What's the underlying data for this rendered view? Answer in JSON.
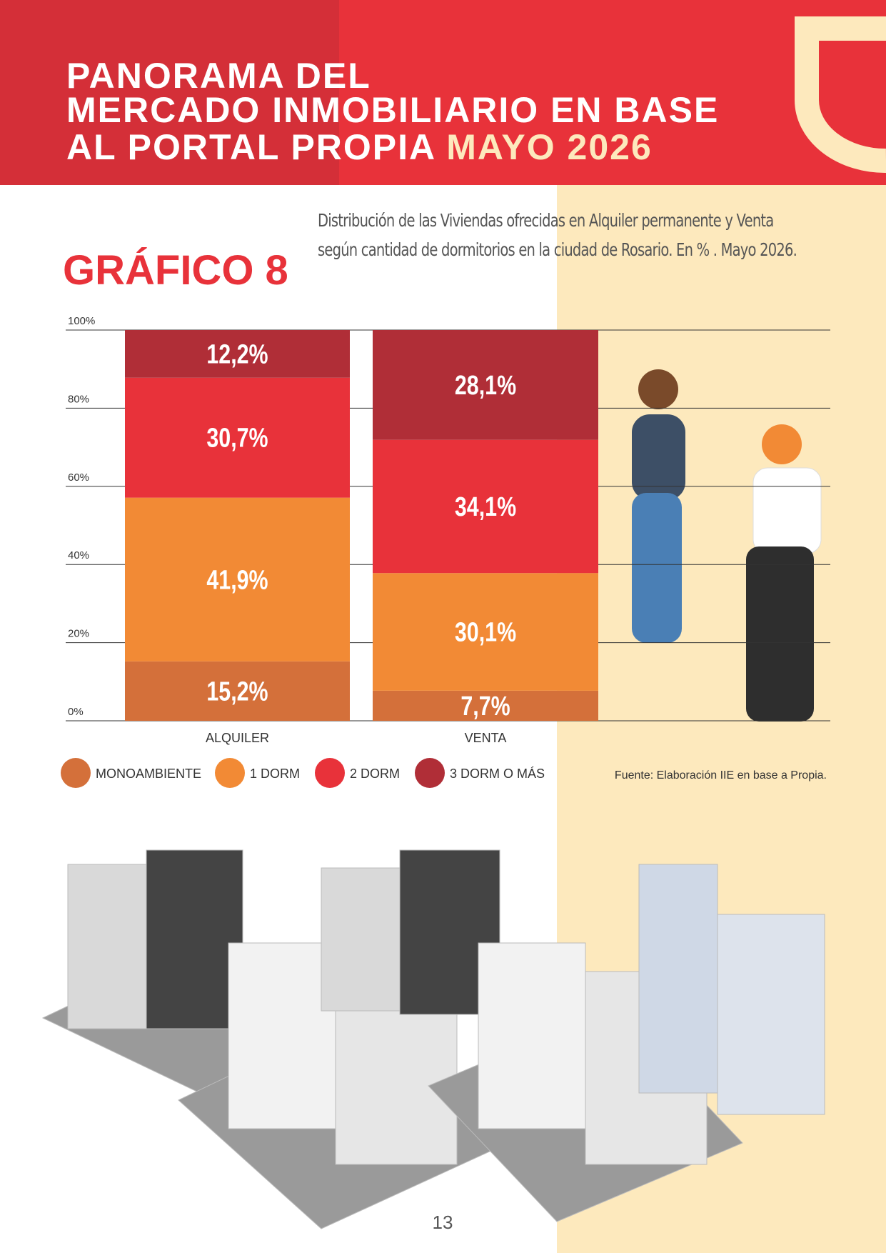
{
  "header": {
    "title_lines": [
      "PANORAMA DEL",
      "MERCADO INMOBILIARIO EN BASE",
      "AL PORTAL PROPIA"
    ],
    "highlight": "MAYO 2026"
  },
  "chart_data": {
    "type": "stacked_bar",
    "label": "GRÁFICO 8",
    "title": "Distribución de las Viviendas ofrecidas en Alquiler permanente y Venta según cantidad de dormitorios en la ciudad de Rosario. En % . Mayo 2026.",
    "categories": [
      "ALQUILER",
      "VENTA"
    ],
    "series": [
      {
        "name": "MONOAMBIENTE",
        "color": "#d4703a",
        "values": [
          15.2,
          7.7
        ],
        "value_labels": [
          "15,2%",
          "7,7%"
        ]
      },
      {
        "name": "1 DORM",
        "color": "#f28a35",
        "values": [
          41.9,
          30.1
        ],
        "value_labels": [
          "41,9%",
          "30,1%"
        ]
      },
      {
        "name": "2 DORM",
        "color": "#e8323a",
        "values": [
          30.7,
          34.1
        ],
        "value_labels": [
          "30,7%",
          "34,1%"
        ]
      },
      {
        "name": "3 DORM O MÁS",
        "color": "#b02e37",
        "values": [
          12.2,
          28.1
        ],
        "value_labels": [
          "12,2%",
          "28,1%"
        ]
      }
    ],
    "ylim": [
      0,
      100
    ],
    "yticks": [
      {
        "value": 0,
        "label": "0%"
      },
      {
        "value": 20,
        "label": "20%"
      },
      {
        "value": 40,
        "label": "40%"
      },
      {
        "value": 60,
        "label": "60%"
      },
      {
        "value": 80,
        "label": "80%"
      },
      {
        "value": 100,
        "label": "100%"
      }
    ],
    "grid": true,
    "source": "Fuente: Elaboración IIE en base a Propia."
  },
  "page_number": "13"
}
